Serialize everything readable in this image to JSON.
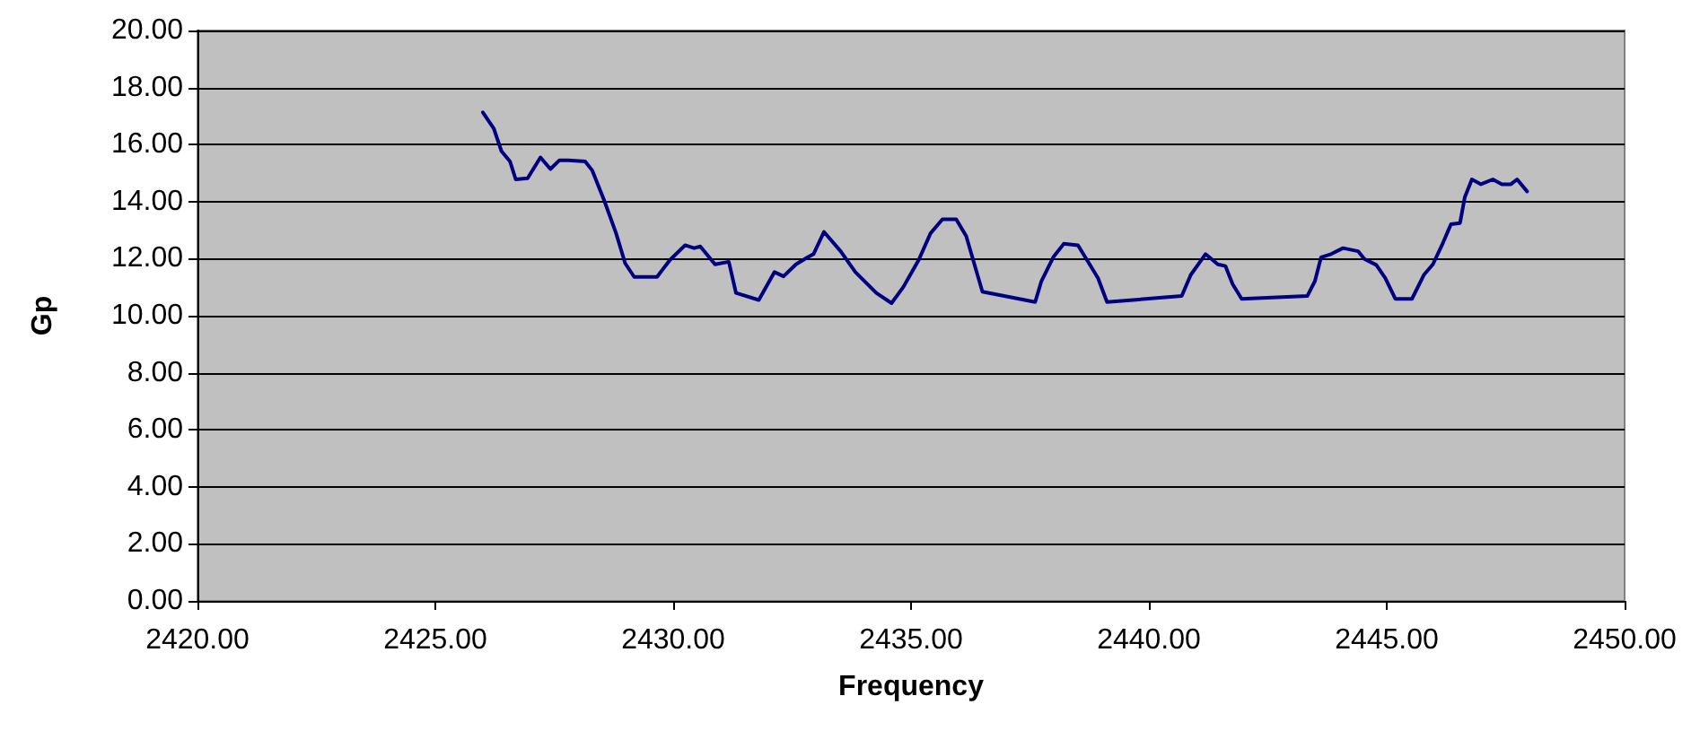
{
  "chart_data": {
    "type": "line",
    "xlabel": "Frequency",
    "ylabel": "Gp",
    "x": [
      2426.0,
      2426.23,
      2426.39,
      2426.57,
      2426.69,
      2426.94,
      2427.21,
      2427.42,
      2427.61,
      2427.8,
      2428.15,
      2428.3,
      2428.55,
      2428.8,
      2428.99,
      2429.18,
      2429.66,
      2429.93,
      2430.25,
      2430.44,
      2430.57,
      2430.88,
      2431.17,
      2431.32,
      2431.8,
      2432.13,
      2432.32,
      2432.58,
      2432.83,
      2432.95,
      2433.17,
      2433.52,
      2433.83,
      2434.27,
      2434.59,
      2434.84,
      2435.16,
      2435.41,
      2435.66,
      2435.95,
      2436.16,
      2436.5,
      2437.61,
      2437.74,
      2437.99,
      2438.21,
      2438.51,
      2438.74,
      2438.93,
      2439.12,
      2440.69,
      2440.88,
      2441.19,
      2441.45,
      2441.61,
      2441.76,
      2441.95,
      2443.33,
      2443.49,
      2443.62,
      2443.83,
      2444.08,
      2444.4,
      2444.53,
      2444.78,
      2444.97,
      2445.18,
      2445.53,
      2445.78,
      2445.97,
      2446.16,
      2446.35,
      2446.54,
      2446.64,
      2446.79,
      2446.98,
      2447.23,
      2447.42,
      2447.61,
      2447.74,
      2447.95
    ],
    "series": [
      {
        "color": "#000080",
        "values": [
          17.13,
          16.56,
          15.77,
          15.41,
          14.78,
          14.82,
          15.55,
          15.14,
          15.45,
          15.45,
          15.41,
          15.09,
          14.04,
          12.89,
          11.84,
          11.36,
          11.36,
          11.95,
          12.47,
          12.37,
          12.43,
          11.8,
          11.89,
          10.8,
          10.55,
          11.53,
          11.38,
          11.8,
          12.05,
          12.16,
          12.94,
          12.26,
          11.53,
          10.8,
          10.44,
          11.01,
          11.95,
          12.89,
          13.38,
          13.38,
          12.79,
          10.84,
          10.48,
          11.21,
          12.05,
          12.52,
          12.47,
          11.84,
          11.32,
          10.48,
          10.69,
          11.43,
          12.16,
          11.8,
          11.74,
          11.11,
          10.59,
          10.69,
          11.21,
          12.05,
          12.16,
          12.37,
          12.26,
          11.99,
          11.78,
          11.32,
          10.59,
          10.59,
          11.43,
          11.8,
          12.47,
          13.21,
          13.25,
          14.15,
          14.78,
          14.61,
          14.78,
          14.61,
          14.61,
          14.78,
          14.36
        ]
      }
    ],
    "xlim": [
      2420,
      2450
    ],
    "xticks": [
      {
        "value": 2420,
        "label": "2420.00"
      },
      {
        "value": 2425,
        "label": "2425.00"
      },
      {
        "value": 2430,
        "label": "2430.00"
      },
      {
        "value": 2435,
        "label": "2435.00"
      },
      {
        "value": 2440,
        "label": "2440.00"
      },
      {
        "value": 2445,
        "label": "2445.00"
      },
      {
        "value": 2450,
        "label": "2450.00"
      }
    ],
    "ylim": [
      0,
      20
    ],
    "yticks": [
      {
        "value": 0,
        "label": "0.00"
      },
      {
        "value": 2,
        "label": "2.00"
      },
      {
        "value": 4,
        "label": "4.00"
      },
      {
        "value": 6,
        "label": "6.00"
      },
      {
        "value": 8,
        "label": "8.00"
      },
      {
        "value": 10,
        "label": "10.00"
      },
      {
        "value": 12,
        "label": "12.00"
      },
      {
        "value": 14,
        "label": "14.00"
      },
      {
        "value": 16,
        "label": "16.00"
      },
      {
        "value": 18,
        "label": "18.00"
      },
      {
        "value": 20,
        "label": "20.00"
      }
    ],
    "grid": "y",
    "marker": "none",
    "line_style": "solid"
  }
}
